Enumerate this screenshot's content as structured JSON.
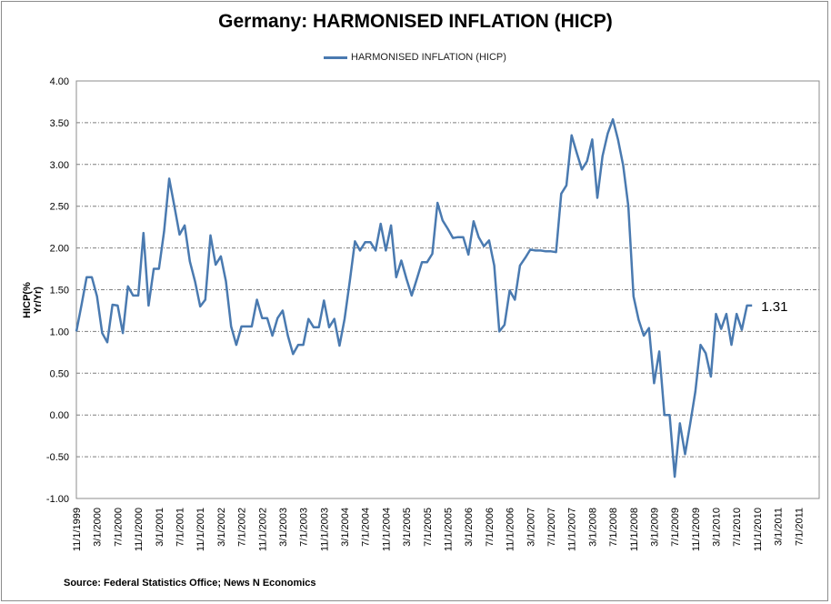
{
  "chart_data": {
    "type": "line",
    "title": "Germany: HARMONISED INFLATION (HICP)",
    "ylabel": "HICP(% Yr/Yr)",
    "xlabel": "",
    "ylim": [
      -1.0,
      4.0
    ],
    "yticks": [
      "4.00",
      "3.50",
      "3.00",
      "2.50",
      "2.00",
      "1.50",
      "1.00",
      "0.50",
      "0.00",
      "-0.50",
      "-1.00"
    ],
    "xtick_labels": [
      "11/1/1999",
      "3/1/2000",
      "7/1/2000",
      "11/1/2000",
      "3/1/2001",
      "7/1/2001",
      "11/1/2001",
      "3/1/2002",
      "7/1/2002",
      "11/1/2002",
      "3/1/2003",
      "7/1/2003",
      "11/1/2003",
      "3/1/2004",
      "7/1/2004",
      "11/1/2004",
      "3/1/2005",
      "7/1/2005",
      "11/1/2005",
      "3/1/2006",
      "7/1/2006",
      "11/1/2006",
      "3/1/2007",
      "7/1/2007",
      "11/1/2007",
      "3/1/2008",
      "7/1/2008",
      "11/1/2008",
      "3/1/2009",
      "7/1/2009",
      "11/1/2009",
      "3/1/2010",
      "7/1/2010",
      "11/1/2010",
      "3/1/2011",
      "7/1/2011"
    ],
    "grid": "horizontal-dashed",
    "legend": "top-center",
    "series": [
      {
        "name": "HARMONISED INFLATION (HICP)",
        "color": "#4a7ab0",
        "start": "11/1/1999",
        "values": [
          1.0,
          1.32,
          1.65,
          1.65,
          1.42,
          0.98,
          0.87,
          1.32,
          1.31,
          0.98,
          1.54,
          1.43,
          1.43,
          2.18,
          1.31,
          1.75,
          1.75,
          2.2,
          2.83,
          2.5,
          2.16,
          2.27,
          1.84,
          1.6,
          1.3,
          1.38,
          2.15,
          1.8,
          1.9,
          1.6,
          1.06,
          0.84,
          1.06,
          1.06,
          1.06,
          1.38,
          1.16,
          1.16,
          0.95,
          1.16,
          1.25,
          0.95,
          0.73,
          0.84,
          0.84,
          1.15,
          1.05,
          1.05,
          1.37,
          1.05,
          1.15,
          0.83,
          1.15,
          1.6,
          2.08,
          1.97,
          2.07,
          2.07,
          1.97,
          2.29,
          1.97,
          2.27,
          1.65,
          1.85,
          1.63,
          1.43,
          1.63,
          1.83,
          1.83,
          1.93,
          2.54,
          2.33,
          2.23,
          2.12,
          2.13,
          2.13,
          1.92,
          2.32,
          2.13,
          2.02,
          2.09,
          1.79,
          1.0,
          1.08,
          1.49,
          1.38,
          1.79,
          1.88,
          1.98,
          1.97,
          1.97,
          1.96,
          1.96,
          1.95,
          2.65,
          2.75,
          3.35,
          3.14,
          2.94,
          3.04,
          3.3,
          2.6,
          3.1,
          3.37,
          3.54,
          3.3,
          2.99,
          2.5,
          1.42,
          1.14,
          0.95,
          1.04,
          0.38,
          0.76,
          0.0,
          0.0,
          -0.74,
          -0.1,
          -0.47,
          -0.1,
          0.28,
          0.84,
          0.74,
          0.46,
          1.21,
          1.03,
          1.21,
          0.84,
          1.21,
          1.02,
          1.31,
          1.31
        ]
      }
    ],
    "annotations": [
      {
        "text": "1.31",
        "at": "last-point"
      }
    ]
  },
  "source": "Source: Federal Statistics Office;  News N Economics"
}
